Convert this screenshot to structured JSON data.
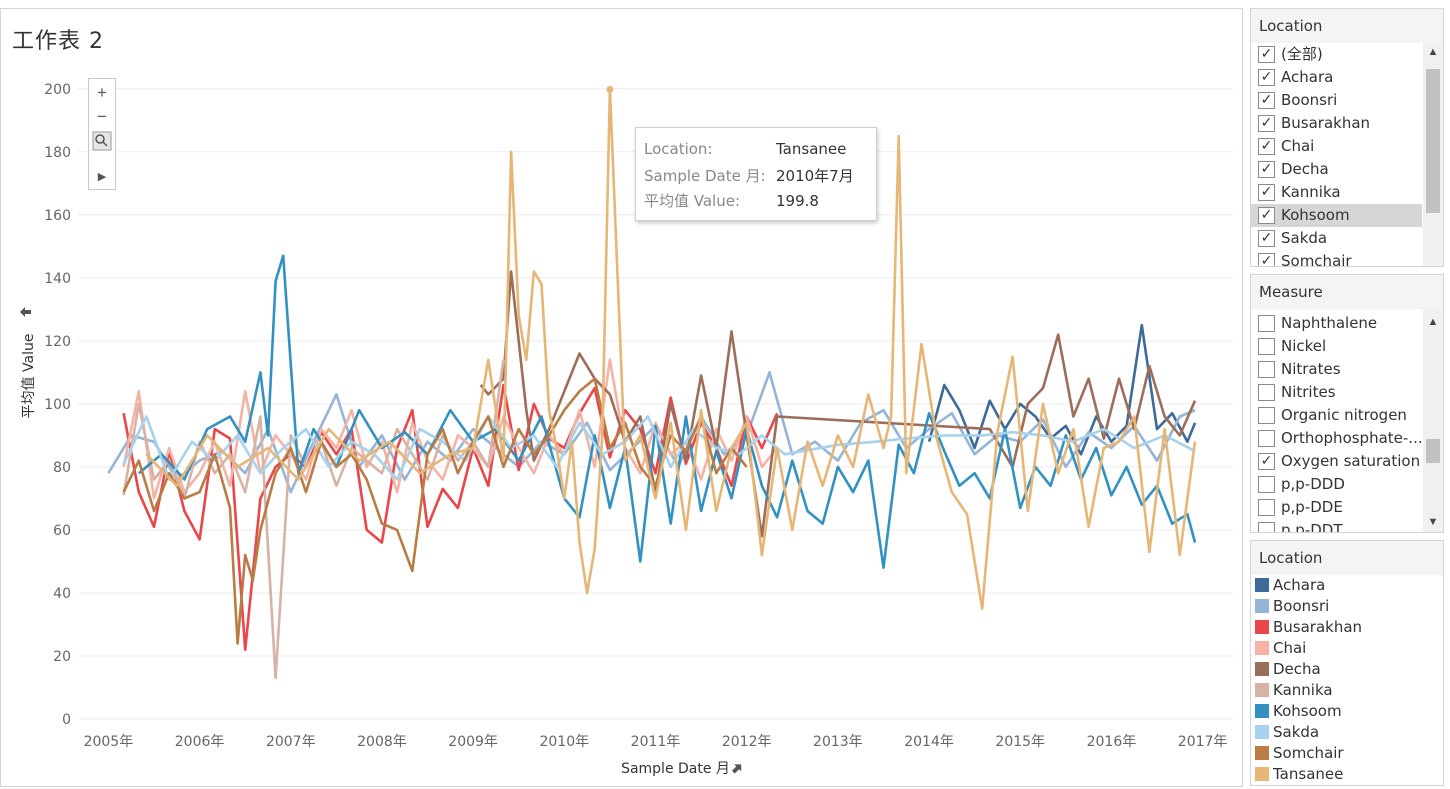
{
  "sheet": {
    "title": "工作表 2"
  },
  "zoom_toolbar": {
    "zoom_in": "+",
    "zoom_out": "−",
    "arrow": "▶"
  },
  "tooltip": {
    "rows": [
      {
        "key": "Location:",
        "value": "Tansanee"
      },
      {
        "key": "Sample Date 月:",
        "value": "2010年7月"
      },
      {
        "key": "平均值 Value:",
        "value": "199.8"
      }
    ]
  },
  "filters": {
    "location": {
      "title": "Location",
      "items": [
        {
          "label": "(全部)",
          "checked": true
        },
        {
          "label": "Achara",
          "checked": true
        },
        {
          "label": "Boonsri",
          "checked": true
        },
        {
          "label": "Busarakhan",
          "checked": true
        },
        {
          "label": "Chai",
          "checked": true
        },
        {
          "label": "Decha",
          "checked": true
        },
        {
          "label": "Kannika",
          "checked": true
        },
        {
          "label": "Kohsoom",
          "checked": true,
          "highlighted": true
        },
        {
          "label": "Sakda",
          "checked": true
        },
        {
          "label": "Somchair",
          "checked": true
        }
      ]
    },
    "measure": {
      "title": "Measure",
      "items": [
        {
          "label": "Naphthalene",
          "checked": false
        },
        {
          "label": "Nickel",
          "checked": false
        },
        {
          "label": "Nitrates",
          "checked": false
        },
        {
          "label": "Nitrites",
          "checked": false
        },
        {
          "label": "Organic nitrogen",
          "checked": false
        },
        {
          "label": "Orthophosphate-...",
          "checked": false
        },
        {
          "label": "Oxygen saturation",
          "checked": true
        },
        {
          "label": "p,p-DDD",
          "checked": false
        },
        {
          "label": "p,p-DDE",
          "checked": false
        },
        {
          "label": "p,p-DDT",
          "checked": false
        }
      ]
    }
  },
  "legend": {
    "title": "Location",
    "items": [
      {
        "label": "Achara",
        "color": "#3e6a9a"
      },
      {
        "label": "Boonsri",
        "color": "#94b4d8"
      },
      {
        "label": "Busarakhan",
        "color": "#e8464a"
      },
      {
        "label": "Chai",
        "color": "#f5b3a5"
      },
      {
        "label": "Decha",
        "color": "#9b6e5a"
      },
      {
        "label": "Kannika",
        "color": "#d6b3a6"
      },
      {
        "label": "Kohsoom",
        "color": "#3391c1"
      },
      {
        "label": "Sakda",
        "color": "#a6d2ec"
      },
      {
        "label": "Somchair",
        "color": "#b97c45"
      },
      {
        "label": "Tansanee",
        "color": "#e6b677"
      }
    ]
  },
  "chart_data": {
    "type": "line",
    "xlabel": "Sample Date 月",
    "ylabel": "平均值 Value",
    "x_ticks": [
      "2005年",
      "2006年",
      "2007年",
      "2008年",
      "2009年",
      "2010年",
      "2011年",
      "2012年",
      "2013年",
      "2014年",
      "2015年",
      "2016年",
      "2017年"
    ],
    "y_ticks": [
      0,
      20,
      40,
      60,
      80,
      100,
      120,
      140,
      160,
      180,
      200
    ],
    "ylim": [
      0,
      205
    ],
    "xlim": [
      "2004-09",
      "2017-05"
    ],
    "grid": true,
    "legend_position": "right",
    "series": [
      {
        "name": "Achara",
        "x": [
          "2014-01",
          "2014-03",
          "2014-05",
          "2014-07",
          "2014-09",
          "2014-11",
          "2015-01",
          "2015-03",
          "2015-05",
          "2015-07",
          "2015-09",
          "2015-11",
          "2016-01",
          "2016-03",
          "2016-05",
          "2016-07",
          "2016-09",
          "2016-11",
          "2016-12"
        ],
        "values": [
          88,
          106,
          98,
          86,
          101,
          92,
          100,
          96,
          89,
          93,
          84,
          96,
          88,
          93,
          125,
          92,
          97,
          88,
          94
        ]
      },
      {
        "name": "Boonsri",
        "x": [
          "2005-01",
          "2005-04",
          "2005-07",
          "2005-10",
          "2006-01",
          "2006-04",
          "2006-07",
          "2006-10",
          "2007-01",
          "2007-04",
          "2007-07",
          "2007-10",
          "2008-01",
          "2008-04",
          "2008-07",
          "2008-10",
          "2009-01",
          "2009-04",
          "2009-07",
          "2009-10",
          "2010-01",
          "2010-04",
          "2010-07",
          "2010-10",
          "2011-01",
          "2011-04",
          "2011-07",
          "2011-10",
          "2012-01",
          "2012-04",
          "2012-07",
          "2012-10",
          "2013-01",
          "2013-04",
          "2013-07",
          "2013-10",
          "2014-01",
          "2014-04",
          "2014-07",
          "2014-10",
          "2015-01",
          "2015-04",
          "2015-07",
          "2015-10",
          "2016-01",
          "2016-04",
          "2016-07",
          "2016-10",
          "2016-12"
        ],
        "values": [
          78,
          90,
          88,
          76,
          82,
          85,
          78,
          92,
          72,
          88,
          103,
          80,
          90,
          76,
          88,
          82,
          92,
          86,
          80,
          88,
          84,
          94,
          79,
          86,
          93,
          80,
          96,
          84,
          90,
          110,
          84,
          88,
          82,
          94,
          98,
          86,
          92,
          97,
          84,
          90,
          88,
          95,
          80,
          91,
          86,
          93,
          82,
          96,
          98
        ]
      },
      {
        "name": "Busarakhan",
        "x": [
          "2005-03",
          "2005-05",
          "2005-07",
          "2005-09",
          "2005-11",
          "2006-01",
          "2006-03",
          "2006-05",
          "2006-07",
          "2006-09",
          "2006-11",
          "2007-01",
          "2007-03",
          "2007-05",
          "2007-07",
          "2007-09",
          "2007-11",
          "2008-01",
          "2008-03",
          "2008-05",
          "2008-07",
          "2008-09",
          "2008-11",
          "2009-01",
          "2009-03",
          "2009-05",
          "2009-07",
          "2009-09",
          "2009-11",
          "2010-01",
          "2010-03",
          "2010-05",
          "2010-07",
          "2010-09",
          "2010-11",
          "2011-01",
          "2011-03",
          "2011-05",
          "2011-07",
          "2011-09",
          "2011-11",
          "2012-01",
          "2012-03",
          "2012-05"
        ],
        "values": [
          97,
          72,
          61,
          85,
          66,
          57,
          92,
          89,
          22,
          70,
          80,
          84,
          80,
          91,
          84,
          92,
          60,
          56,
          86,
          98,
          61,
          73,
          67,
          86,
          74,
          106,
          79,
          100,
          89,
          86,
          97,
          105,
          83,
          98,
          92,
          78,
          102,
          81,
          94,
          86,
          74,
          96,
          86,
          97
        ]
      },
      {
        "name": "Chai",
        "x": [
          "2005-03",
          "2005-05",
          "2005-07",
          "2005-09",
          "2005-11",
          "2006-01",
          "2006-03",
          "2006-05",
          "2006-07",
          "2006-09",
          "2006-11",
          "2007-01",
          "2007-03",
          "2007-05",
          "2007-07",
          "2007-09",
          "2007-11",
          "2008-01",
          "2008-03",
          "2008-05",
          "2008-07",
          "2008-09",
          "2008-11",
          "2009-01",
          "2009-03",
          "2009-05",
          "2009-07",
          "2009-09",
          "2009-11",
          "2010-01",
          "2010-03",
          "2010-05",
          "2010-07",
          "2010-09",
          "2010-11",
          "2011-01",
          "2011-03",
          "2011-05",
          "2011-07",
          "2011-09",
          "2011-11",
          "2012-01",
          "2012-03",
          "2012-05"
        ],
        "values": [
          80,
          104,
          70,
          86,
          72,
          78,
          88,
          74,
          104,
          78,
          90,
          84,
          76,
          92,
          86,
          98,
          80,
          88,
          72,
          94,
          82,
          76,
          90,
          86,
          80,
          96,
          86,
          78,
          90,
          84,
          98,
          80,
          114,
          86,
          78,
          94,
          84,
          88,
          76,
          92,
          82,
          96,
          80,
          86
        ]
      },
      {
        "name": "Decha",
        "x": [
          "2009-02",
          "2009-03",
          "2009-05",
          "2009-06",
          "2009-08",
          "2009-09",
          "2009-11",
          "2010-01",
          "2010-03",
          "2010-05",
          "2010-07",
          "2010-09",
          "2010-11",
          "2011-01",
          "2011-03",
          "2011-05",
          "2011-07",
          "2011-09",
          "2011-11",
          "2012-01",
          "2012-03",
          "2012-05",
          "2014-09",
          "2014-12",
          "2015-02",
          "2015-04",
          "2015-06",
          "2015-08",
          "2015-10",
          "2015-12",
          "2016-02",
          "2016-04",
          "2016-06",
          "2016-08",
          "2016-10",
          "2016-12"
        ],
        "values": [
          106,
          103,
          108,
          142,
          98,
          82,
          92,
          104,
          116,
          108,
          103,
          88,
          96,
          72,
          100,
          82,
          109,
          86,
          123,
          90,
          58,
          96,
          92,
          80,
          100,
          105,
          122,
          96,
          108,
          89,
          108,
          92,
          112,
          96,
          90,
          101
        ]
      },
      {
        "name": "Kannika",
        "x": [
          "2005-03",
          "2005-05",
          "2005-07",
          "2005-09",
          "2005-11",
          "2006-01",
          "2006-03",
          "2006-05",
          "2006-07",
          "2006-09",
          "2006-11",
          "2007-01",
          "2007-03",
          "2007-05",
          "2007-07",
          "2007-09",
          "2007-11",
          "2008-01",
          "2008-03",
          "2008-05",
          "2008-07",
          "2008-09",
          "2008-11",
          "2009-01",
          "2009-03",
          "2009-05"
        ],
        "values": [
          71,
          100,
          76,
          82,
          70,
          88,
          78,
          84,
          72,
          96,
          13,
          90,
          80,
          88,
          74,
          86,
          82,
          78,
          92,
          84,
          76,
          90,
          82,
          88,
          80,
          114
        ]
      },
      {
        "name": "Kohsoom",
        "x": [
          "2005-05",
          "2005-08",
          "2005-11",
          "2006-02",
          "2006-05",
          "2006-07",
          "2006-09",
          "2006-10",
          "2006-11",
          "2006-12",
          "2007-02",
          "2007-04",
          "2007-07",
          "2007-10",
          "2008-01",
          "2008-04",
          "2008-07",
          "2008-10",
          "2009-01",
          "2009-04",
          "2009-07",
          "2009-10",
          "2010-01",
          "2010-03",
          "2010-05",
          "2010-07",
          "2010-09",
          "2010-11",
          "2011-01",
          "2011-03",
          "2011-05",
          "2011-07",
          "2011-09",
          "2011-11",
          "2012-01",
          "2012-03",
          "2012-05",
          "2012-07",
          "2012-09",
          "2012-11",
          "2013-01",
          "2013-03",
          "2013-05",
          "2013-07",
          "2013-09",
          "2013-11",
          "2014-01",
          "2014-03",
          "2014-05",
          "2014-07",
          "2014-09",
          "2014-11",
          "2015-01",
          "2015-03",
          "2015-05",
          "2015-07",
          "2015-09",
          "2015-11",
          "2016-01",
          "2016-03",
          "2016-05",
          "2016-07",
          "2016-09",
          "2016-11",
          "2016-12"
        ],
        "values": [
          78,
          84,
          76,
          92,
          96,
          88,
          110,
          90,
          139,
          147,
          78,
          92,
          80,
          98,
          86,
          91,
          84,
          98,
          88,
          92,
          82,
          96,
          70,
          64,
          90,
          67,
          86,
          50,
          93,
          62,
          96,
          66,
          85,
          70,
          92,
          74,
          64,
          82,
          66,
          62,
          80,
          72,
          82,
          48,
          87,
          78,
          97,
          85,
          74,
          78,
          70,
          92,
          67,
          80,
          74,
          90,
          76,
          86,
          71,
          80,
          68,
          74,
          62,
          65,
          56
        ]
      },
      {
        "name": "Sakda",
        "x": [
          "2005-03",
          "2005-06",
          "2005-09",
          "2005-12",
          "2006-03",
          "2006-06",
          "2006-09",
          "2006-12",
          "2007-03",
          "2007-06",
          "2007-09",
          "2007-12",
          "2008-03",
          "2008-06",
          "2008-09",
          "2008-12",
          "2009-03",
          "2009-06",
          "2009-09",
          "2009-12",
          "2010-03",
          "2010-06",
          "2010-09",
          "2010-12",
          "2011-03",
          "2011-06",
          "2011-09",
          "2011-12",
          "2012-03",
          "2012-06",
          "2013-01",
          "2013-06",
          "2013-10",
          "2014-03",
          "2014-08",
          "2014-12",
          "2015-04",
          "2015-08",
          "2015-12",
          "2016-04",
          "2016-08",
          "2016-12"
        ],
        "values": [
          81,
          96,
          76,
          88,
          82,
          90,
          78,
          86,
          92,
          80,
          88,
          84,
          76,
          92,
          88,
          82,
          96,
          86,
          90,
          80,
          94,
          84,
          88,
          96,
          80,
          92,
          86,
          84,
          90,
          84,
          87,
          88,
          89,
          90,
          90,
          91,
          90,
          88,
          92,
          86,
          90,
          85
        ]
      },
      {
        "name": "Somchair",
        "x": [
          "2005-03",
          "2005-05",
          "2005-07",
          "2005-09",
          "2005-11",
          "2006-01",
          "2006-03",
          "2006-05",
          "2006-06",
          "2006-07",
          "2006-08",
          "2006-09",
          "2006-11",
          "2007-01",
          "2007-03",
          "2007-05",
          "2007-07",
          "2007-09",
          "2007-11",
          "2008-01",
          "2008-03",
          "2008-05",
          "2008-07",
          "2008-09",
          "2008-11",
          "2009-01",
          "2009-03",
          "2009-05",
          "2009-07",
          "2009-09",
          "2009-11",
          "2010-01",
          "2010-03",
          "2010-05",
          "2010-07",
          "2010-09",
          "2010-11",
          "2011-01",
          "2011-03",
          "2011-05",
          "2011-07",
          "2011-09",
          "2011-11",
          "2012-01"
        ],
        "values": [
          72,
          82,
          66,
          78,
          70,
          72,
          84,
          67,
          24,
          52,
          44,
          60,
          78,
          86,
          72,
          88,
          80,
          84,
          76,
          62,
          60,
          47,
          84,
          92,
          78,
          88,
          96,
          80,
          92,
          84,
          90,
          98,
          104,
          108,
          86,
          94,
          80,
          74,
          90,
          85,
          96,
          78,
          86,
          80
        ]
      },
      {
        "name": "Tansanee",
        "x": [
          "2005-06",
          "2005-10",
          "2006-02",
          "2006-06",
          "2006-10",
          "2007-02",
          "2007-06",
          "2007-10",
          "2008-02",
          "2008-06",
          "2008-10",
          "2009-01",
          "2009-03",
          "2009-05",
          "2009-06",
          "2009-07",
          "2009-08",
          "2009-09",
          "2009-10",
          "2009-11",
          "2009-12",
          "2010-01",
          "2010-02",
          "2010-03",
          "2010-04",
          "2010-05",
          "2010-06",
          "2010-07",
          "2010-09",
          "2010-11",
          "2011-01",
          "2011-03",
          "2011-05",
          "2011-07",
          "2011-09",
          "2011-11",
          "2012-01",
          "2012-03",
          "2012-05",
          "2012-07",
          "2012-09",
          "2012-11",
          "2013-01",
          "2013-03",
          "2013-05",
          "2013-07",
          "2013-08",
          "2013-09",
          "2013-10",
          "2013-12",
          "2014-02",
          "2014-04",
          "2014-06",
          "2014-08",
          "2014-10",
          "2014-12",
          "2015-02",
          "2015-04",
          "2015-06",
          "2015-08",
          "2015-10",
          "2015-12",
          "2016-02",
          "2016-04",
          "2016-06",
          "2016-08",
          "2016-10",
          "2016-12"
        ],
        "values": [
          84,
          74,
          90,
          80,
          86,
          76,
          92,
          82,
          88,
          78,
          84,
          86,
          114,
          82,
          180,
          128,
          114,
          142,
          138,
          98,
          86,
          70,
          88,
          56,
          40,
          54,
          90,
          200,
          82,
          90,
          70,
          94,
          60,
          98,
          66,
          86,
          94,
          52,
          86,
          60,
          88,
          74,
          90,
          80,
          103,
          86,
          96,
          185,
          78,
          119,
          89,
          72,
          65,
          35,
          91,
          115,
          66,
          100,
          78,
          92,
          61,
          86,
          88,
          96,
          53,
          92,
          52,
          88
        ]
      }
    ]
  }
}
